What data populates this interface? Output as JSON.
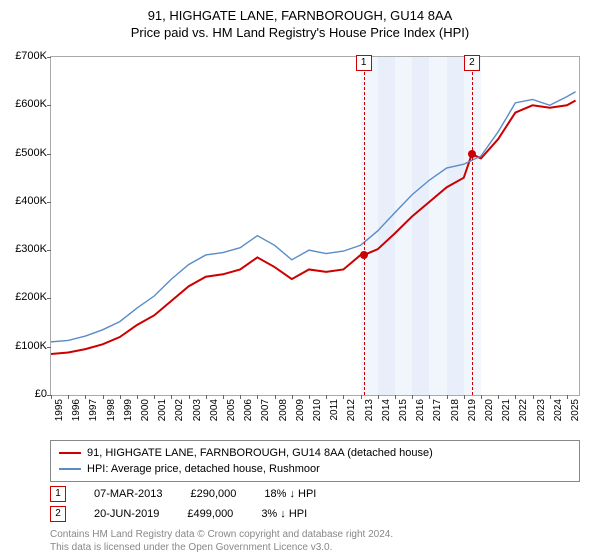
{
  "title_line1": "91, HIGHGATE LANE, FARNBOROUGH, GU14 8AA",
  "title_line2": "Price paid vs. HM Land Registry's House Price Index (HPI)",
  "chart": {
    "type": "line",
    "background_color": "#ffffff",
    "plot_border_color": "#aaaaaa",
    "shaded_band_color": "#e8effa",
    "shaded_years": [
      2013,
      2014,
      2015,
      2016,
      2017,
      2018,
      2019
    ],
    "x_years": [
      1995,
      1996,
      1997,
      1998,
      1999,
      2000,
      2001,
      2002,
      2003,
      2004,
      2005,
      2006,
      2007,
      2008,
      2009,
      2010,
      2011,
      2012,
      2013,
      2014,
      2015,
      2016,
      2017,
      2018,
      2019,
      2020,
      2021,
      2022,
      2023,
      2024,
      2025
    ],
    "xlim": [
      1995,
      2025.7
    ],
    "ylim": [
      0,
      700000
    ],
    "ytick_step": 100000,
    "ytick_labels": [
      "£0",
      "£100K",
      "£200K",
      "£300K",
      "£400K",
      "£500K",
      "£600K",
      "£700K"
    ],
    "label_fontsize": 11,
    "tick_fontsize": 10,
    "series": [
      {
        "name": "property",
        "label": "91, HIGHGATE LANE, FARNBOROUGH, GU14 8AA (detached house)",
        "color": "#cc0000",
        "line_width": 2,
        "points": [
          [
            1995,
            85000
          ],
          [
            1996,
            88000
          ],
          [
            1997,
            95000
          ],
          [
            1998,
            105000
          ],
          [
            1999,
            120000
          ],
          [
            2000,
            145000
          ],
          [
            2001,
            165000
          ],
          [
            2002,
            195000
          ],
          [
            2003,
            225000
          ],
          [
            2004,
            245000
          ],
          [
            2005,
            250000
          ],
          [
            2006,
            260000
          ],
          [
            2007,
            285000
          ],
          [
            2008,
            265000
          ],
          [
            2009,
            240000
          ],
          [
            2010,
            260000
          ],
          [
            2011,
            255000
          ],
          [
            2012,
            260000
          ],
          [
            2013,
            290000
          ],
          [
            2013.2,
            290000
          ],
          [
            2014,
            302000
          ],
          [
            2015,
            335000
          ],
          [
            2016,
            370000
          ],
          [
            2017,
            400000
          ],
          [
            2018,
            430000
          ],
          [
            2019,
            450000
          ],
          [
            2019.47,
            499000
          ],
          [
            2020,
            490000
          ],
          [
            2021,
            530000
          ],
          [
            2022,
            585000
          ],
          [
            2023,
            600000
          ],
          [
            2024,
            595000
          ],
          [
            2025,
            600000
          ],
          [
            2025.5,
            610000
          ]
        ]
      },
      {
        "name": "hpi",
        "label": "HPI: Average price, detached house, Rushmoor",
        "color": "#5b8cc7",
        "line_width": 1.4,
        "points": [
          [
            1995,
            110000
          ],
          [
            1996,
            113000
          ],
          [
            1997,
            122000
          ],
          [
            1998,
            135000
          ],
          [
            1999,
            152000
          ],
          [
            2000,
            180000
          ],
          [
            2001,
            205000
          ],
          [
            2002,
            240000
          ],
          [
            2003,
            270000
          ],
          [
            2004,
            290000
          ],
          [
            2005,
            295000
          ],
          [
            2006,
            305000
          ],
          [
            2007,
            330000
          ],
          [
            2008,
            310000
          ],
          [
            2009,
            280000
          ],
          [
            2010,
            300000
          ],
          [
            2011,
            293000
          ],
          [
            2012,
            298000
          ],
          [
            2013,
            310000
          ],
          [
            2014,
            340000
          ],
          [
            2015,
            378000
          ],
          [
            2016,
            415000
          ],
          [
            2017,
            445000
          ],
          [
            2018,
            470000
          ],
          [
            2019,
            478000
          ],
          [
            2020,
            495000
          ],
          [
            2021,
            545000
          ],
          [
            2022,
            605000
          ],
          [
            2023,
            612000
          ],
          [
            2024,
            600000
          ],
          [
            2025,
            618000
          ],
          [
            2025.5,
            628000
          ]
        ]
      }
    ],
    "sale_markers": [
      {
        "id": "1",
        "x": 2013.18,
        "y": 290000
      },
      {
        "id": "2",
        "x": 2019.47,
        "y": 499000
      }
    ]
  },
  "sales": [
    {
      "id": "1",
      "date": "07-MAR-2013",
      "price": "£290,000",
      "delta": "18% ↓ HPI"
    },
    {
      "id": "2",
      "date": "20-JUN-2019",
      "price": "£499,000",
      "delta": "3% ↓ HPI"
    }
  ],
  "footnote_line1": "Contains HM Land Registry data © Crown copyright and database right 2024.",
  "footnote_line2": "This data is licensed under the Open Government Licence v3.0."
}
